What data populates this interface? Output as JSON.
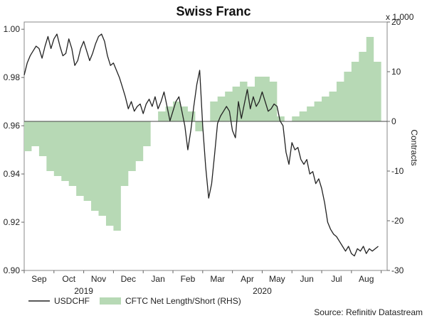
{
  "chart_data": {
    "type": "line",
    "title": "Swiss Franc",
    "source": "Source: Refinitiv Datastream",
    "left_axis": {
      "ticks": [
        0.9,
        0.92,
        0.94,
        0.96,
        0.98,
        1.0
      ],
      "tick_labels": [
        "0.90",
        "0.92",
        "0.94",
        "0.96",
        "0.98",
        "1.00"
      ],
      "range": [
        0.9,
        1.003
      ]
    },
    "right_axis": {
      "label": "Contracts",
      "multiplier": "x 1,000",
      "ticks": [
        -30,
        -20,
        -10,
        0,
        10,
        20
      ],
      "tick_labels": [
        "-30",
        "-20",
        "-10",
        "0",
        "10",
        "20"
      ],
      "range": [
        -30,
        20
      ]
    },
    "x_axis": {
      "months": [
        "Sep",
        "Oct",
        "Nov",
        "Dec",
        "Jan",
        "Feb",
        "Mar",
        "Apr",
        "May",
        "Jun",
        "Jul",
        "Aug"
      ],
      "month_centers": [
        0.5,
        1.5,
        2.5,
        3.5,
        4.5,
        5.5,
        6.5,
        7.5,
        8.5,
        9.5,
        10.5,
        11.5
      ],
      "year_labels": [
        {
          "label": "2019",
          "at": 2.0
        },
        {
          "label": "2020",
          "at": 8.0
        }
      ],
      "range": [
        0,
        12.2
      ]
    },
    "legend": [
      {
        "name": "USDCHF",
        "kind": "line"
      },
      {
        "name": "CFTC Net Length/Short (RHS)",
        "kind": "area"
      }
    ],
    "series": [
      {
        "name": "USDCHF",
        "axis": "left",
        "color": "#222222",
        "x": [
          0.0,
          0.1,
          0.2,
          0.3,
          0.4,
          0.5,
          0.6,
          0.7,
          0.8,
          0.9,
          1.0,
          1.1,
          1.2,
          1.3,
          1.4,
          1.5,
          1.6,
          1.7,
          1.8,
          1.9,
          2.0,
          2.1,
          2.2,
          2.3,
          2.4,
          2.5,
          2.6,
          2.7,
          2.8,
          2.9,
          3.0,
          3.1,
          3.2,
          3.3,
          3.4,
          3.5,
          3.6,
          3.7,
          3.8,
          3.9,
          4.0,
          4.1,
          4.2,
          4.3,
          4.4,
          4.5,
          4.6,
          4.7,
          4.8,
          4.9,
          5.0,
          5.1,
          5.2,
          5.3,
          5.4,
          5.5,
          5.6,
          5.7,
          5.8,
          5.9,
          6.0,
          6.1,
          6.2,
          6.3,
          6.4,
          6.5,
          6.6,
          6.7,
          6.8,
          6.9,
          7.0,
          7.1,
          7.2,
          7.3,
          7.4,
          7.5,
          7.6,
          7.7,
          7.8,
          7.9,
          8.0,
          8.1,
          8.2,
          8.3,
          8.4,
          8.5,
          8.6,
          8.7,
          8.8,
          8.9,
          9.0,
          9.1,
          9.2,
          9.3,
          9.4,
          9.5,
          9.6,
          9.7,
          9.8,
          9.9,
          10.0,
          10.1,
          10.2,
          10.3,
          10.4,
          10.5,
          10.6,
          10.7,
          10.8,
          10.9,
          11.0,
          11.1,
          11.2,
          11.3,
          11.4,
          11.5,
          11.6,
          11.7,
          11.8,
          11.9
        ],
        "values": [
          0.981,
          0.986,
          0.989,
          0.991,
          0.993,
          0.992,
          0.988,
          0.993,
          0.997,
          0.992,
          0.996,
          0.998,
          0.993,
          0.989,
          0.99,
          0.996,
          0.992,
          0.985,
          0.987,
          0.992,
          0.995,
          0.991,
          0.987,
          0.99,
          0.994,
          0.997,
          0.998,
          0.995,
          0.989,
          0.985,
          0.986,
          0.983,
          0.98,
          0.976,
          0.972,
          0.967,
          0.97,
          0.966,
          0.968,
          0.969,
          0.965,
          0.969,
          0.971,
          0.968,
          0.972,
          0.967,
          0.97,
          0.974,
          0.968,
          0.962,
          0.966,
          0.97,
          0.972,
          0.966,
          0.96,
          0.95,
          0.958,
          0.968,
          0.977,
          0.983,
          0.96,
          0.943,
          0.93,
          0.936,
          0.948,
          0.961,
          0.964,
          0.966,
          0.968,
          0.966,
          0.958,
          0.955,
          0.97,
          0.963,
          0.969,
          0.975,
          0.967,
          0.972,
          0.968,
          0.97,
          0.974,
          0.97,
          0.966,
          0.967,
          0.969,
          0.968,
          0.962,
          0.96,
          0.949,
          0.944,
          0.953,
          0.95,
          0.951,
          0.946,
          0.944,
          0.946,
          0.94,
          0.941,
          0.936,
          0.938,
          0.934,
          0.928,
          0.92,
          0.917,
          0.915,
          0.914,
          0.912,
          0.91,
          0.908,
          0.91,
          0.907,
          0.906,
          0.909,
          0.908,
          0.91,
          0.907,
          0.909,
          0.908,
          0.909,
          0.91
        ]
      },
      {
        "name": "CFTC Net Length/Short (RHS)",
        "axis": "right",
        "color": "#b7d9b5",
        "x": [
          0.0,
          0.25,
          0.5,
          0.75,
          1.0,
          1.25,
          1.5,
          1.75,
          2.0,
          2.25,
          2.5,
          2.75,
          3.0,
          3.25,
          3.5,
          3.75,
          4.0,
          4.25,
          4.5,
          4.75,
          5.0,
          5.25,
          5.5,
          5.75,
          6.0,
          6.25,
          6.5,
          6.75,
          7.0,
          7.25,
          7.5,
          7.75,
          8.0,
          8.25,
          8.5,
          8.75,
          9.0,
          9.25,
          9.5,
          9.75,
          10.0,
          10.25,
          10.5,
          10.75,
          11.0,
          11.25,
          11.5,
          11.75,
          12.0
        ],
        "values": [
          -6,
          -5,
          -7,
          -10,
          -11,
          -12,
          -13,
          -15,
          -16,
          -18,
          -19,
          -21,
          -22,
          -13,
          -10,
          -8,
          -5,
          0,
          2,
          3,
          4,
          3,
          2,
          -2,
          0,
          4,
          5,
          6,
          7,
          8,
          7,
          9,
          9,
          8,
          1,
          0,
          1,
          2,
          3,
          4,
          5,
          6,
          8,
          10,
          12,
          14,
          17,
          12,
          11
        ]
      }
    ]
  }
}
